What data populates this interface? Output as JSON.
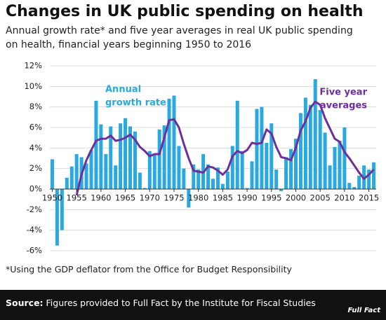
{
  "chart_data": {
    "type": "bar_line",
    "title": "Changes in UK public spending on health",
    "subtitle": [
      "Annual growth rate* and five year averages in real UK public spending",
      "on health, financial years beginning 1950 to 2016"
    ],
    "footnote": "*Using the GDP deflator from the Office for Budget Responsibility",
    "source_label": "Source:",
    "source": "Figures provided to Full Fact by the Institute for Fiscal Studies",
    "logo": "Full Fact",
    "x": [
      1950,
      1951,
      1952,
      1953,
      1954,
      1955,
      1956,
      1957,
      1958,
      1959,
      1960,
      1961,
      1962,
      1963,
      1964,
      1965,
      1966,
      1967,
      1968,
      1969,
      1970,
      1971,
      1972,
      1973,
      1974,
      1975,
      1976,
      1977,
      1978,
      1979,
      1980,
      1981,
      1982,
      1983,
      1984,
      1985,
      1986,
      1987,
      1988,
      1989,
      1990,
      1991,
      1992,
      1993,
      1994,
      1995,
      1996,
      1997,
      1998,
      1999,
      2000,
      2001,
      2002,
      2003,
      2004,
      2005,
      2006,
      2007,
      2008,
      2009,
      2010,
      2011,
      2012,
      2013,
      2014,
      2015,
      2016
    ],
    "xlim": [
      1949.5,
      2016.5
    ],
    "xticks": [
      1950,
      1955,
      1960,
      1965,
      1970,
      1975,
      1980,
      1985,
      1990,
      1995,
      2000,
      2005,
      2010,
      2015
    ],
    "ylim": [
      -6,
      12
    ],
    "yticks": [
      {
        "value": -6,
        "label": "-6%"
      },
      {
        "value": -4,
        "label": "-4%"
      },
      {
        "value": -2,
        "label": "-2%"
      },
      {
        "value": 0,
        "label": "0%"
      },
      {
        "value": 2,
        "label": "2%"
      },
      {
        "value": 4,
        "label": "4%"
      },
      {
        "value": 6,
        "label": "6%"
      },
      {
        "value": 8,
        "label": "8%"
      },
      {
        "value": 10,
        "label": "10%"
      },
      {
        "value": 12,
        "label": "12%"
      }
    ],
    "grid": true,
    "series": [
      {
        "name": [
          "Annual",
          "growth rate"
        ],
        "kind": "bar",
        "color": "#2aa9e0",
        "values": [
          2.9,
          -5.5,
          -4.0,
          1.1,
          2.2,
          3.4,
          3.1,
          2.5,
          3.8,
          8.6,
          6.3,
          3.4,
          6.1,
          2.3,
          6.4,
          6.9,
          6.1,
          5.6,
          1.6,
          0.1,
          3.7,
          3.3,
          5.8,
          6.2,
          8.8,
          9.1,
          4.2,
          2.0,
          -1.8,
          2.4,
          1.9,
          3.4,
          2.4,
          1.0,
          2.1,
          0.5,
          1.7,
          4.2,
          8.6,
          3.7,
          0.1,
          2.7,
          7.8,
          8.0,
          4.5,
          6.4,
          1.9,
          -0.2,
          3.1,
          3.9,
          4.9,
          7.4,
          8.9,
          8.2,
          10.7,
          7.7,
          5.5,
          2.3,
          4.1,
          4.7,
          6.0,
          0.6,
          0.2,
          1.3,
          2.3,
          1.9,
          2.6
        ]
      },
      {
        "name": [
          "Five year",
          "averages"
        ],
        "kind": "line",
        "color": "#6d2f9c",
        "values": [
          null,
          null,
          null,
          null,
          null,
          -0.6,
          1.4,
          2.8,
          3.8,
          4.7,
          4.9,
          4.9,
          5.2,
          4.7,
          4.8,
          5.0,
          5.3,
          4.8,
          4.1,
          3.7,
          3.2,
          3.4,
          3.4,
          5.0,
          6.7,
          6.8,
          6.0,
          4.4,
          3.0,
          1.8,
          1.7,
          1.6,
          2.2,
          2.1,
          1.8,
          1.4,
          1.9,
          3.2,
          3.7,
          3.5,
          3.8,
          4.5,
          4.4,
          4.5,
          5.8,
          5.4,
          4.1,
          3.1,
          3.0,
          2.8,
          4.0,
          5.7,
          6.6,
          7.9,
          8.5,
          8.2,
          6.9,
          5.9,
          4.9,
          4.6,
          3.6,
          3.0,
          2.3,
          1.6,
          1.0,
          1.4,
          1.9
        ]
      }
    ]
  }
}
